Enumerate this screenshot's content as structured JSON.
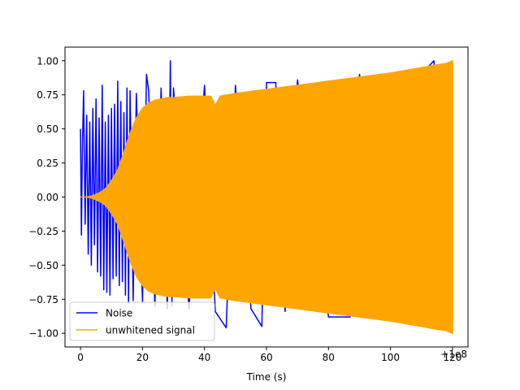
{
  "chart_data": {
    "type": "line",
    "title": "",
    "xlabel": "Time (s)",
    "ylabel": "",
    "x_offset_label": "+1e8",
    "xlim": [
      -5,
      125
    ],
    "ylim": [
      -1.1,
      1.1
    ],
    "x_ticks": [
      0,
      20,
      40,
      60,
      80,
      100,
      120
    ],
    "x_tick_labels": [
      "0",
      "20",
      "40",
      "60",
      "80",
      "100",
      "120"
    ],
    "y_ticks": [
      -1.0,
      -0.75,
      -0.5,
      -0.25,
      0.0,
      0.25,
      0.5,
      0.75,
      1.0
    ],
    "y_tick_labels": [
      "−1.00",
      "−0.75",
      "−0.50",
      "−0.25",
      "0.00",
      "0.25",
      "0.50",
      "0.75",
      "1.00"
    ],
    "grid": false,
    "legend_position": "lower-left",
    "series": [
      {
        "name": "Noise",
        "color": "#0000ff",
        "x": [
          0,
          0.3,
          0.6,
          1.0,
          1.5,
          2.0,
          2.5,
          3.0,
          3.5,
          4.0,
          4.5,
          5.0,
          5.5,
          6.0,
          6.5,
          7.0,
          7.5,
          8.0,
          8.5,
          9.0,
          9.5,
          10.0,
          10.5,
          11.0,
          11.5,
          12.0,
          12.5,
          13.0,
          13.5,
          14.0,
          14.5,
          15.0,
          15.5,
          16.0,
          17.0,
          18.0,
          20.0,
          21.3,
          22.0,
          24.0,
          26.0,
          28.0,
          29.0,
          29.5,
          30.0,
          35.0,
          40.0,
          43.5,
          47.0,
          50.0,
          55.0,
          58.5,
          60.0,
          63.0,
          66.0,
          70.0,
          80.0,
          87.0,
          90.0,
          100.0,
          110.0,
          114.0,
          120.0
        ],
        "y": [
          0.5,
          -0.28,
          0.35,
          0.78,
          -0.2,
          0.6,
          -0.42,
          0.55,
          -0.5,
          0.65,
          -0.35,
          0.72,
          -0.55,
          0.58,
          -0.58,
          0.82,
          -0.68,
          0.55,
          -0.7,
          0.6,
          -0.72,
          0.65,
          -0.6,
          0.68,
          -0.58,
          0.85,
          -0.65,
          0.7,
          -0.62,
          0.62,
          -0.72,
          0.8,
          -0.78,
          0.78,
          -0.76,
          0.76,
          -0.77,
          0.9,
          0.78,
          -0.8,
          0.8,
          -0.82,
          1.0,
          -0.8,
          0.8,
          -0.82,
          0.82,
          -0.84,
          -0.96,
          0.82,
          -0.82,
          -0.95,
          0.84,
          0.84,
          -0.84,
          0.86,
          -0.88,
          -0.88,
          0.9,
          -0.9,
          0.9,
          1.0,
          -0.98
        ]
      },
      {
        "name": "unwhitened signal",
        "color": "#ffa500",
        "x": [
          0,
          2,
          4,
          6,
          8,
          10,
          12,
          14,
          16,
          18,
          20,
          22,
          24,
          26,
          28,
          30,
          35,
          40,
          42,
          43.5,
          45,
          50,
          60,
          70,
          80,
          90,
          100,
          110,
          115,
          118,
          120
        ],
        "y_upper": [
          0.0,
          0.0,
          0.01,
          0.03,
          0.06,
          0.12,
          0.2,
          0.33,
          0.47,
          0.58,
          0.65,
          0.69,
          0.71,
          0.72,
          0.73,
          0.73,
          0.74,
          0.74,
          0.74,
          0.67,
          0.74,
          0.76,
          0.79,
          0.82,
          0.85,
          0.88,
          0.91,
          0.95,
          0.97,
          0.98,
          1.0
        ],
        "y_lower": [
          0.0,
          0.0,
          -0.01,
          -0.03,
          -0.06,
          -0.12,
          -0.2,
          -0.33,
          -0.47,
          -0.58,
          -0.65,
          -0.69,
          -0.71,
          -0.72,
          -0.73,
          -0.73,
          -0.74,
          -0.74,
          -0.74,
          -0.67,
          -0.74,
          -0.76,
          -0.79,
          -0.82,
          -0.85,
          -0.88,
          -0.91,
          -0.95,
          -0.97,
          -0.98,
          -1.0
        ]
      }
    ]
  }
}
